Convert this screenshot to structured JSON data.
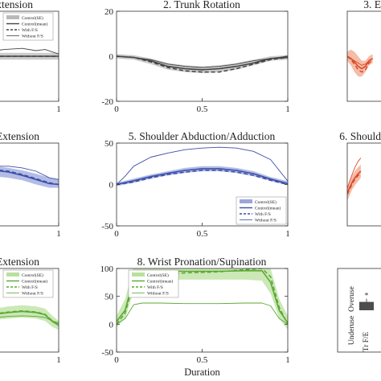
{
  "chart_data": [
    {
      "type": "line",
      "title": "Extension",
      "xlabel": "",
      "ylabel": "",
      "xlim": [
        0,
        1
      ],
      "ylim": [
        -20,
        20
      ],
      "xticks": [
        1
      ],
      "yticks": [],
      "band_color": "#b9b9b9",
      "line_color": "#444444",
      "legend": {
        "position": "top",
        "entries": [
          "Control(SE)",
          "Control(mean)",
          "With F/S",
          "Without F/S"
        ]
      },
      "series": [
        {
          "name": "Control(SE)",
          "style": "band",
          "x": [
            0,
            0.25,
            0.5,
            0.75,
            1
          ],
          "lower": [
            -1.5,
            -1.5,
            -1.5,
            -1.5,
            -1.5
          ],
          "upper": [
            1.5,
            1.5,
            1.5,
            1.5,
            1.5
          ]
        },
        {
          "name": "Control(mean)",
          "style": "solid",
          "x": [
            0,
            0.25,
            0.5,
            0.75,
            1
          ],
          "y": [
            0,
            0,
            0,
            0,
            0
          ]
        },
        {
          "name": "With F/S",
          "style": "dashed",
          "x": [
            0,
            0.25,
            0.5,
            0.75,
            1
          ],
          "y": [
            0,
            0,
            0,
            0,
            0
          ]
        },
        {
          "name": "Without F/S",
          "style": "thin",
          "x": [
            0,
            0.2,
            0.4,
            0.6,
            0.75,
            0.85,
            1
          ],
          "y": [
            1,
            2,
            3,
            3.5,
            2.5,
            3,
            1
          ]
        }
      ]
    },
    {
      "type": "line",
      "title": "2. Trunk Rotation",
      "xlabel": "",
      "ylabel": "",
      "xlim": [
        0,
        1
      ],
      "ylim": [
        -20,
        20
      ],
      "xticks": [
        0,
        0.5,
        1
      ],
      "yticks": [
        20,
        0,
        -20
      ],
      "band_color": "#b9b9b9",
      "line_color": "#444444",
      "series": [
        {
          "name": "Control(SE)",
          "style": "band",
          "x": [
            0,
            0.1,
            0.2,
            0.3,
            0.4,
            0.5,
            0.6,
            0.7,
            0.8,
            0.9,
            1
          ],
          "lower": [
            -1,
            -1.5,
            -3.5,
            -6,
            -7,
            -7.5,
            -7,
            -6,
            -4,
            -2,
            -1.5
          ],
          "upper": [
            1,
            0.5,
            -1,
            -3,
            -4,
            -4.5,
            -4,
            -3,
            -1.5,
            0,
            0.5
          ]
        },
        {
          "name": "Control(mean)",
          "style": "solid",
          "x": [
            0,
            0.1,
            0.2,
            0.3,
            0.4,
            0.5,
            0.6,
            0.7,
            0.8,
            0.9,
            1
          ],
          "y": [
            0,
            -0.5,
            -2,
            -4.5,
            -5.5,
            -6,
            -5.5,
            -4.5,
            -3,
            -1,
            -0.5
          ]
        },
        {
          "name": "With F/S",
          "style": "dashed",
          "x": [
            0,
            0.1,
            0.2,
            0.3,
            0.4,
            0.5,
            0.6,
            0.7,
            0.8,
            0.9,
            1
          ],
          "y": [
            0,
            -0.5,
            -2.5,
            -5,
            -6.5,
            -7,
            -7,
            -5.5,
            -3.5,
            -1.5,
            -0.5
          ]
        },
        {
          "name": "Without F/S",
          "style": "thin",
          "x": [
            0,
            0.1,
            0.2,
            0.3,
            0.4,
            0.5,
            0.6,
            0.7,
            0.8,
            0.9,
            1
          ],
          "y": [
            0,
            -0.5,
            -1.5,
            -3.5,
            -4.5,
            -5,
            -4.5,
            -3.5,
            -2,
            -1,
            0
          ]
        }
      ]
    },
    {
      "type": "line",
      "title": "3. E",
      "xlabel": "",
      "ylabel": "",
      "xlim": [
        0,
        1
      ],
      "ylim": [
        -20,
        20
      ],
      "xticks": [],
      "yticks": [],
      "band_color": "#f2a58a",
      "line_color": "#d94b2a",
      "series": [
        {
          "name": "Control(SE)",
          "style": "band",
          "x": [
            0,
            0.04,
            0.08,
            0.12,
            0.16,
            0.2,
            0.24,
            0.28
          ],
          "lower": [
            -2,
            -4,
            -7,
            -9,
            -9,
            -7,
            -4,
            -3
          ],
          "upper": [
            2,
            3,
            2,
            0,
            -2,
            -2,
            0,
            1
          ]
        },
        {
          "name": "Control(mean)",
          "style": "solid",
          "x": [
            0,
            0.04,
            0.08,
            0.12,
            0.16,
            0.2,
            0.24,
            0.28
          ],
          "y": [
            0,
            -1,
            -2.5,
            -4.5,
            -5.5,
            -4.5,
            -2,
            -1
          ]
        },
        {
          "name": "With F/S",
          "style": "dashed",
          "x": [
            0,
            0.04,
            0.08,
            0.12,
            0.16,
            0.2,
            0.24,
            0.28
          ],
          "y": [
            0,
            -1.5,
            -3.5,
            -6,
            -7,
            -6,
            -3,
            -1.5
          ]
        },
        {
          "name": "Without F/S",
          "style": "thin",
          "x": [
            0,
            0.04,
            0.08,
            0.12,
            0.16,
            0.2,
            0.24,
            0.28
          ],
          "y": [
            0,
            -1,
            -2,
            -3,
            -4,
            -3.5,
            -2,
            -1
          ]
        }
      ]
    },
    {
      "type": "line",
      "title": "Extension",
      "xlabel": "",
      "ylabel": "",
      "xlim": [
        0,
        1
      ],
      "ylim": [
        -50,
        50
      ],
      "xticks": [
        1
      ],
      "yticks": [],
      "band_color": "#9aa6dc",
      "line_color": "#3c4ea8",
      "series": [
        {
          "name": "Control(SE)",
          "style": "band",
          "x": [
            0,
            0.15,
            0.3,
            0.45,
            0.6,
            0.75,
            0.9,
            1
          ],
          "lower": [
            15,
            12,
            10,
            8,
            5,
            0,
            -4,
            -4
          ],
          "upper": [
            30,
            26,
            22,
            20,
            17,
            13,
            8,
            6
          ]
        },
        {
          "name": "Control(mean)",
          "style": "solid",
          "x": [
            0,
            0.15,
            0.3,
            0.45,
            0.6,
            0.75,
            0.9,
            1
          ],
          "y": [
            23,
            20,
            17,
            15,
            11,
            6,
            1,
            0
          ]
        },
        {
          "name": "With F/S",
          "style": "dashed",
          "x": [
            0,
            0.15,
            0.3,
            0.45,
            0.6,
            0.75,
            0.9,
            1
          ],
          "y": [
            25,
            22,
            18,
            16,
            12,
            7,
            2,
            0
          ]
        },
        {
          "name": "Without F/S",
          "style": "thin",
          "x": [
            0,
            0.15,
            0.3,
            0.45,
            0.6,
            0.75,
            0.9,
            1
          ],
          "y": [
            30,
            28,
            22,
            22,
            20,
            16,
            8,
            6
          ]
        }
      ]
    },
    {
      "type": "line",
      "title": "5. Shoulder Abduction/Adduction",
      "xlabel": "",
      "ylabel": "",
      "xlim": [
        0,
        1
      ],
      "ylim": [
        -50,
        50
      ],
      "xticks": [
        0,
        0.5,
        1
      ],
      "yticks": [
        50,
        0,
        -50
      ],
      "band_color": "#9aa6dc",
      "line_color": "#3c4ea8",
      "legend": {
        "position": "bottom-right",
        "entries": [
          "Control(SE)",
          "Control(mean)",
          "With F/S",
          "Without F/S"
        ]
      },
      "series": [
        {
          "name": "Control(SE)",
          "style": "band",
          "x": [
            0,
            0.1,
            0.2,
            0.3,
            0.4,
            0.5,
            0.6,
            0.7,
            0.8,
            0.9,
            1
          ],
          "lower": [
            -2,
            2,
            7,
            11,
            14,
            16,
            16,
            14,
            10,
            4,
            -1
          ],
          "upper": [
            2,
            7,
            12,
            16,
            20,
            22,
            22,
            20,
            16,
            9,
            4
          ]
        },
        {
          "name": "Control(mean)",
          "style": "solid",
          "x": [
            0,
            0.1,
            0.2,
            0.3,
            0.4,
            0.5,
            0.6,
            0.7,
            0.8,
            0.9,
            1
          ],
          "y": [
            0,
            4.5,
            9.5,
            13.5,
            17,
            19,
            19,
            17,
            13,
            6.5,
            1
          ]
        },
        {
          "name": "With F/S",
          "style": "dashed",
          "x": [
            0,
            0.1,
            0.2,
            0.3,
            0.4,
            0.5,
            0.6,
            0.7,
            0.8,
            0.9,
            1
          ],
          "y": [
            0,
            3,
            8,
            12,
            15,
            17,
            17,
            15,
            11,
            5,
            0
          ]
        },
        {
          "name": "Without F/S",
          "style": "thin",
          "x": [
            0,
            0.05,
            0.1,
            0.2,
            0.3,
            0.4,
            0.5,
            0.6,
            0.7,
            0.8,
            0.9,
            1
          ],
          "y": [
            0,
            10,
            22,
            33,
            38,
            42,
            44,
            45,
            44,
            40,
            30,
            4
          ]
        }
      ]
    },
    {
      "type": "line",
      "title": "6. Should",
      "xlabel": "",
      "ylabel": "",
      "xlim": [
        0,
        1
      ],
      "ylim": [
        -50,
        50
      ],
      "xticks": [],
      "yticks": [],
      "band_color": "#f2a58a",
      "line_color": "#d94b2a",
      "series": [
        {
          "name": "Control(SE)",
          "style": "band",
          "x": [
            0,
            0.03,
            0.06,
            0.09,
            0.12,
            0.15
          ],
          "lower": [
            -20,
            -12,
            -5,
            0,
            4,
            8
          ],
          "upper": [
            -3,
            5,
            12,
            17,
            21,
            24
          ]
        },
        {
          "name": "Control(mean)",
          "style": "solid",
          "x": [
            0,
            0.03,
            0.06,
            0.09,
            0.12,
            0.15
          ],
          "y": [
            -10,
            -3,
            4,
            9,
            13,
            16
          ]
        },
        {
          "name": "With F/S",
          "style": "dashed",
          "x": [
            0,
            0.03,
            0.06,
            0.09,
            0.12,
            0.15
          ],
          "y": [
            -12,
            -5,
            2,
            7,
            11,
            14
          ]
        },
        {
          "name": "Without F/S",
          "style": "thin",
          "x": [
            0,
            0.03,
            0.06,
            0.09,
            0.12,
            0.15
          ],
          "y": [
            -5,
            5,
            14,
            22,
            28,
            32
          ]
        }
      ]
    },
    {
      "type": "line",
      "title": "Extension",
      "xlabel": "",
      "ylabel": "",
      "xlim": [
        0,
        1
      ],
      "ylim": [
        -50,
        100
      ],
      "xticks": [
        1
      ],
      "yticks": [],
      "band_color": "#b9e09e",
      "line_color": "#5aa832",
      "legend": {
        "position": "top",
        "entries": [
          "Control(SE)",
          "Control(mean)",
          "With F/S",
          "Without F/S"
        ]
      },
      "series": [
        {
          "name": "Control(SE)",
          "style": "band",
          "x": [
            0,
            0.15,
            0.3,
            0.45,
            0.6,
            0.75,
            0.85,
            0.93,
            1
          ],
          "lower": [
            2,
            4,
            8,
            10,
            12,
            10,
            6,
            -5,
            -10
          ],
          "upper": [
            20,
            24,
            28,
            32,
            34,
            32,
            28,
            15,
            6
          ]
        },
        {
          "name": "Control(mean)",
          "style": "solid",
          "x": [
            0,
            0.15,
            0.3,
            0.45,
            0.6,
            0.75,
            0.85,
            0.93,
            1
          ],
          "y": [
            11,
            14,
            18,
            21,
            23,
            21,
            17,
            5,
            -2
          ]
        },
        {
          "name": "With F/S",
          "style": "dashed",
          "x": [
            0,
            0.15,
            0.3,
            0.45,
            0.6,
            0.75,
            0.85,
            0.93,
            1
          ],
          "y": [
            12,
            15,
            19,
            22,
            24,
            22,
            18,
            6,
            -1
          ]
        },
        {
          "name": "Without F/S",
          "style": "thin",
          "x": [
            0,
            0.15,
            0.3,
            0.45,
            0.6,
            0.75,
            0.85,
            0.93,
            1
          ],
          "y": [
            8,
            10,
            12,
            14,
            15,
            14,
            12,
            6,
            2
          ]
        }
      ]
    },
    {
      "type": "line",
      "title": "8. Wrist Pronation/Supination",
      "xlabel": "Duration",
      "ylabel": "",
      "xlim": [
        0,
        1
      ],
      "ylim": [
        -50,
        100
      ],
      "xticks": [
        0,
        0.5,
        1
      ],
      "yticks": [
        100,
        50,
        0,
        -50
      ],
      "band_color": "#b9e09e",
      "line_color": "#5aa832",
      "legend": {
        "position": "top-left",
        "entries": [
          "Control(SE)",
          "Control(mean)",
          "With F/S",
          "Without F/S"
        ]
      },
      "series": [
        {
          "name": "Control(SE)",
          "style": "band",
          "x": [
            0,
            0.05,
            0.1,
            0.15,
            0.25,
            0.4,
            0.5,
            0.6,
            0.75,
            0.85,
            0.9,
            0.95,
            1
          ],
          "lower": [
            -5,
            10,
            60,
            78,
            80,
            80,
            80,
            80,
            80,
            78,
            55,
            10,
            -10
          ],
          "upper": [
            15,
            45,
            105,
            115,
            112,
            110,
            110,
            110,
            112,
            115,
            100,
            45,
            15
          ]
        },
        {
          "name": "Control(mean)",
          "style": "solid",
          "x": [
            0,
            0.05,
            0.1,
            0.15,
            0.25,
            0.4,
            0.5,
            0.6,
            0.75,
            0.85,
            0.9,
            0.95,
            1
          ],
          "y": [
            5,
            25,
            82,
            95,
            96,
            95,
            95,
            95,
            96,
            96,
            75,
            25,
            2
          ]
        },
        {
          "name": "With F/S",
          "style": "dashed",
          "x": [
            0,
            0.05,
            0.1,
            0.15,
            0.25,
            0.4,
            0.5,
            0.6,
            0.75,
            0.85,
            0.9,
            0.95,
            1
          ],
          "y": [
            0,
            20,
            75,
            88,
            90,
            92,
            93,
            94,
            98,
            100,
            85,
            30,
            0
          ]
        },
        {
          "name": "Without F/S",
          "style": "thin",
          "x": [
            0,
            0.05,
            0.1,
            0.15,
            0.25,
            0.4,
            0.5,
            0.6,
            0.75,
            0.85,
            0.9,
            0.95,
            1
          ],
          "y": [
            0,
            10,
            35,
            38,
            38,
            37,
            37,
            37,
            38,
            38,
            33,
            10,
            0
          ]
        }
      ]
    },
    {
      "type": "bar",
      "title": "",
      "xlabel": "",
      "ylabel": "",
      "categories": [
        "Tr F/E"
      ],
      "values": [
        0.6
      ],
      "ylim": [
        -3,
        3
      ],
      "bar_color": "#4d4d4d",
      "annotation": "*",
      "region_labels": {
        "upper": "Overuse",
        "lower": "Underuse"
      },
      "xtick_label": "Tr F/E"
    }
  ]
}
